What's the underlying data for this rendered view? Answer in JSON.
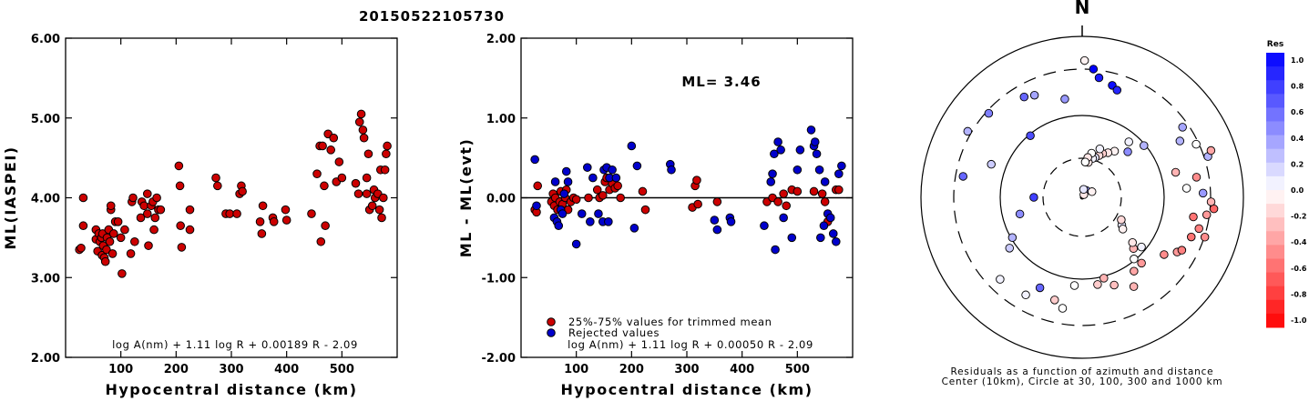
{
  "title": "20150522105730",
  "chart_data": [
    {
      "type": "scatter",
      "xlabel": "Hypocentral distance (km)",
      "ylabel": "ML(IASPEI)",
      "xlim": [
        0,
        600
      ],
      "ylim": [
        2,
        6
      ],
      "xticks": [
        "100",
        "200",
        "300",
        "400",
        "500"
      ],
      "yticks": [
        "2.00",
        "3.00",
        "4.00",
        "5.00",
        "6.00"
      ],
      "formula": "log A(nm) + 1.11 log R + 0.00189 R - 2.09",
      "color": "#cc0000",
      "points": [
        [
          25,
          3.35
        ],
        [
          28,
          3.37
        ],
        [
          32,
          4.0
        ],
        [
          32,
          3.65
        ],
        [
          55,
          3.6
        ],
        [
          55,
          3.48
        ],
        [
          58,
          3.33
        ],
        [
          60,
          3.55
        ],
        [
          62,
          3.45
        ],
        [
          65,
          3.5
        ],
        [
          66,
          3.28
        ],
        [
          67,
          3.55
        ],
        [
          68,
          3.4
        ],
        [
          70,
          3.25
        ],
        [
          72,
          3.2
        ],
        [
          74,
          3.35
        ],
        [
          75,
          3.5
        ],
        [
          78,
          3.6
        ],
        [
          80,
          3.45
        ],
        [
          82,
          3.85
        ],
        [
          82,
          3.9
        ],
        [
          85,
          3.3
        ],
        [
          87,
          3.55
        ],
        [
          90,
          3.7
        ],
        [
          95,
          3.7
        ],
        [
          100,
          3.5
        ],
        [
          102,
          3.05
        ],
        [
          107,
          3.6
        ],
        [
          118,
          3.3
        ],
        [
          120,
          3.95
        ],
        [
          122,
          4.0
        ],
        [
          125,
          3.45
        ],
        [
          136,
          3.75
        ],
        [
          138,
          3.95
        ],
        [
          142,
          3.9
        ],
        [
          148,
          3.8
        ],
        [
          148,
          4.05
        ],
        [
          150,
          3.4
        ],
        [
          155,
          3.9
        ],
        [
          158,
          3.95
        ],
        [
          160,
          3.6
        ],
        [
          162,
          3.75
        ],
        [
          165,
          4.0
        ],
        [
          168,
          3.85
        ],
        [
          172,
          3.85
        ],
        [
          205,
          4.4
        ],
        [
          207,
          4.15
        ],
        [
          208,
          3.65
        ],
        [
          210,
          3.38
        ],
        [
          225,
          3.6
        ],
        [
          225,
          3.85
        ],
        [
          272,
          4.25
        ],
        [
          275,
          4.15
        ],
        [
          290,
          3.8
        ],
        [
          297,
          3.8
        ],
        [
          310,
          3.8
        ],
        [
          315,
          4.05
        ],
        [
          318,
          4.15
        ],
        [
          320,
          4.08
        ],
        [
          352,
          3.7
        ],
        [
          355,
          3.55
        ],
        [
          357,
          3.9
        ],
        [
          375,
          3.75
        ],
        [
          377,
          3.7
        ],
        [
          398,
          3.85
        ],
        [
          400,
          3.72
        ],
        [
          445,
          3.8
        ],
        [
          455,
          4.3
        ],
        [
          460,
          4.65
        ],
        [
          462,
          3.45
        ],
        [
          465,
          4.65
        ],
        [
          468,
          4.15
        ],
        [
          470,
          3.65
        ],
        [
          475,
          4.8
        ],
        [
          480,
          4.6
        ],
        [
          485,
          4.75
        ],
        [
          490,
          4.2
        ],
        [
          495,
          4.45
        ],
        [
          500,
          4.25
        ],
        [
          525,
          4.18
        ],
        [
          530,
          4.05
        ],
        [
          532,
          4.95
        ],
        [
          535,
          5.05
        ],
        [
          538,
          4.85
        ],
        [
          540,
          4.75
        ],
        [
          545,
          4.05
        ],
        [
          545,
          4.25
        ],
        [
          548,
          4.55
        ],
        [
          550,
          3.85
        ],
        [
          555,
          3.9
        ],
        [
          558,
          4.1
        ],
        [
          560,
          4.0
        ],
        [
          565,
          4.05
        ],
        [
          568,
          3.85
        ],
        [
          570,
          4.35
        ],
        [
          572,
          3.75
        ],
        [
          575,
          4.0
        ],
        [
          578,
          4.35
        ],
        [
          580,
          4.55
        ],
        [
          582,
          4.65
        ]
      ]
    },
    {
      "type": "scatter",
      "xlabel": "Hypocentral distance (km)",
      "ylabel": "ML - ML(evt)",
      "xlim": [
        0,
        600
      ],
      "ylim": [
        -2,
        2
      ],
      "xticks": [
        "100",
        "200",
        "300",
        "400",
        "500"
      ],
      "yticks": [
        "-2.00",
        "-1.00",
        "0.00",
        "1.00",
        "2.00"
      ],
      "annotation": "ML= 3.46",
      "formula": "log A(nm) + 1.11 log R + 0.00050 R - 2.09",
      "legend": [
        {
          "label": "25%-75% values for trimmed mean",
          "color": "#cc0000"
        },
        {
          "label": "Rejected values",
          "color": "#0000cc"
        }
      ],
      "trimmed": [
        [
          25,
          -0.15
        ],
        [
          28,
          -0.18
        ],
        [
          30,
          0.15
        ],
        [
          55,
          -0.05
        ],
        [
          58,
          0.05
        ],
        [
          60,
          -0.1
        ],
        [
          62,
          0.0
        ],
        [
          66,
          -0.15
        ],
        [
          70,
          -0.05
        ],
        [
          72,
          0.08
        ],
        [
          75,
          -0.08
        ],
        [
          80,
          0.0
        ],
        [
          82,
          0.1
        ],
        [
          85,
          -0.15
        ],
        [
          90,
          -0.05
        ],
        [
          95,
          0.0
        ],
        [
          100,
          -0.02
        ],
        [
          122,
          0.0
        ],
        [
          138,
          0.1
        ],
        [
          142,
          0.0
        ],
        [
          148,
          0.03
        ],
        [
          152,
          0.2
        ],
        [
          155,
          0.25
        ],
        [
          160,
          0.1
        ],
        [
          165,
          0.18
        ],
        [
          170,
          0.12
        ],
        [
          175,
          0.15
        ],
        [
          180,
          0.0
        ],
        [
          220,
          0.08
        ],
        [
          225,
          -0.15
        ],
        [
          310,
          -0.12
        ],
        [
          315,
          0.15
        ],
        [
          318,
          0.22
        ],
        [
          320,
          -0.08
        ],
        [
          355,
          -0.05
        ],
        [
          445,
          -0.05
        ],
        [
          455,
          0.0
        ],
        [
          465,
          -0.05
        ],
        [
          475,
          0.05
        ],
        [
          480,
          -0.1
        ],
        [
          490,
          0.1
        ],
        [
          500,
          0.08
        ],
        [
          530,
          0.08
        ],
        [
          545,
          0.05
        ],
        [
          550,
          -0.05
        ],
        [
          555,
          -0.3
        ],
        [
          570,
          0.1
        ],
        [
          575,
          0.1
        ]
      ],
      "rejected": [
        [
          25,
          0.48
        ],
        [
          28,
          -0.1
        ],
        [
          60,
          -0.25
        ],
        [
          62,
          0.2
        ],
        [
          65,
          -0.3
        ],
        [
          68,
          -0.35
        ],
        [
          72,
          -0.15
        ],
        [
          75,
          -0.2
        ],
        [
          78,
          0.05
        ],
        [
          82,
          0.33
        ],
        [
          85,
          0.2
        ],
        [
          100,
          -0.58
        ],
        [
          110,
          -0.2
        ],
        [
          120,
          0.38
        ],
        [
          125,
          -0.3
        ],
        [
          130,
          0.25
        ],
        [
          140,
          -0.2
        ],
        [
          148,
          -0.3
        ],
        [
          150,
          0.35
        ],
        [
          155,
          0.38
        ],
        [
          158,
          -0.3
        ],
        [
          160,
          0.25
        ],
        [
          165,
          0.35
        ],
        [
          172,
          0.25
        ],
        [
          200,
          0.65
        ],
        [
          205,
          -0.38
        ],
        [
          210,
          0.4
        ],
        [
          270,
          0.42
        ],
        [
          272,
          0.35
        ],
        [
          350,
          -0.28
        ],
        [
          355,
          -0.4
        ],
        [
          378,
          -0.25
        ],
        [
          380,
          -0.3
        ],
        [
          440,
          -0.35
        ],
        [
          452,
          0.2
        ],
        [
          455,
          0.3
        ],
        [
          458,
          0.55
        ],
        [
          460,
          -0.65
        ],
        [
          465,
          0.7
        ],
        [
          470,
          0.6
        ],
        [
          475,
          -0.25
        ],
        [
          490,
          -0.5
        ],
        [
          500,
          0.35
        ],
        [
          505,
          0.6
        ],
        [
          525,
          0.85
        ],
        [
          530,
          0.65
        ],
        [
          532,
          0.7
        ],
        [
          535,
          0.55
        ],
        [
          540,
          0.35
        ],
        [
          542,
          -0.5
        ],
        [
          548,
          -0.35
        ],
        [
          550,
          0.2
        ],
        [
          555,
          -0.2
        ],
        [
          560,
          -0.25
        ],
        [
          565,
          -0.45
        ],
        [
          570,
          -0.55
        ],
        [
          575,
          0.3
        ],
        [
          580,
          0.4
        ]
      ]
    },
    {
      "type": "polar-scatter",
      "north_label": "N",
      "caption_line1": "Residuals as a function of azimuth and distance",
      "caption_line2": "Center (10km), Circle at 30, 100, 300 and 1000 km",
      "colorbar_title": "Res",
      "colorbar_ticks": [
        "1.0",
        "0.8",
        "0.6",
        "0.4",
        "0.2",
        "0.0",
        "-0.2",
        "-0.4",
        "-0.6",
        "-0.8",
        "-1.0"
      ],
      "points": [
        [
          1,
          0.85
        ],
        [
          5,
          0.8
        ],
        [
          8,
          0.75
        ],
        [
          15,
          0.72
        ],
        [
          18,
          0.7
        ],
        [
          -10,
          0.62
        ],
        [
          -25,
          0.7
        ],
        [
          -30,
          0.72
        ],
        [
          -40,
          0.5
        ],
        [
          -48,
          0.78
        ],
        [
          -60,
          0.82
        ],
        [
          -70,
          0.6
        ],
        [
          -80,
          0.75
        ],
        [
          -90,
          0.3
        ],
        [
          -105,
          0.4
        ],
        [
          -120,
          0.5
        ],
        [
          -125,
          0.55
        ],
        [
          -135,
          0.72
        ],
        [
          -150,
          0.7
        ],
        [
          -155,
          0.62
        ],
        [
          -175,
          0.55
        ],
        [
          -170,
          0.7
        ],
        [
          -165,
          0.66
        ],
        [
          170,
          0.55
        ],
        [
          165,
          0.52
        ],
        [
          160,
          0.58
        ],
        [
          150,
          0.64
        ],
        [
          145,
          0.56
        ],
        [
          140,
          0.5
        ],
        [
          138,
          0.55
        ],
        [
          135,
          0.45
        ],
        [
          132,
          0.42
        ],
        [
          130,
          0.48
        ],
        [
          125,
          0.62
        ],
        [
          120,
          0.68
        ],
        [
          118,
          0.7
        ],
        [
          110,
          0.72
        ],
        [
          108,
          0.8
        ],
        [
          105,
          0.75
        ],
        [
          100,
          0.7
        ],
        [
          98,
          0.78
        ],
        [
          95,
          0.82
        ],
        [
          92,
          0.8
        ],
        [
          88,
          0.75
        ],
        [
          85,
          0.65
        ],
        [
          80,
          0.72
        ],
        [
          75,
          0.6
        ],
        [
          72,
          0.82
        ],
        [
          70,
          0.85
        ],
        [
          65,
          0.78
        ],
        [
          60,
          0.7
        ],
        [
          55,
          0.76
        ],
        [
          50,
          0.5
        ],
        [
          45,
          0.4
        ],
        [
          40,
          0.45
        ],
        [
          35,
          0.35
        ],
        [
          30,
          0.32
        ],
        [
          25,
          0.3
        ],
        [
          22,
          0.28
        ],
        [
          20,
          0.32
        ],
        [
          18,
          0.26
        ],
        [
          15,
          0.25
        ],
        [
          12,
          0.28
        ],
        [
          10,
          0.22
        ],
        [
          8,
          0.25
        ],
        [
          5,
          0.22
        ],
        [
          125,
          0.3
        ],
        [
          128,
          0.32
        ],
        [
          120,
          0.28
        ],
        [
          30,
          0.05
        ],
        [
          32,
          0.02
        ],
        [
          60,
          0.07
        ],
        [
          10,
          0.05
        ]
      ],
      "residuals": [
        -0.05,
        1.0,
        0.9,
        0.95,
        0.85,
        0.4,
        0.35,
        0.6,
        0.7,
        0.5,
        0.3,
        0.2,
        0.6,
        0.75,
        0.45,
        0.3,
        0.2,
        0.05,
        0.05,
        0.6,
        0.0,
        0.0,
        -0.2,
        -0.2,
        -0.3,
        -0.25,
        -0.3,
        -0.35,
        0.0,
        -0.4,
        -0.3,
        -0.1,
        0.05,
        -0.45,
        -0.4,
        -0.5,
        -0.55,
        -0.45,
        -0.5,
        -0.55,
        -0.4,
        -0.6,
        -0.3,
        0.4,
        0.0,
        -0.45,
        -0.3,
        0.3,
        -0.35,
        0.0,
        0.3,
        0.35,
        0.3,
        0.45,
        0.05,
        -0.05,
        -0.1,
        -0.2,
        -0.15,
        0.05,
        0.1,
        0.05,
        0.0,
        -0.1,
        -0.1,
        0.0,
        0.1,
        -0.05,
        -0.15,
        0.4,
        -0.1,
        -0.05,
        0.1
      ]
    }
  ]
}
